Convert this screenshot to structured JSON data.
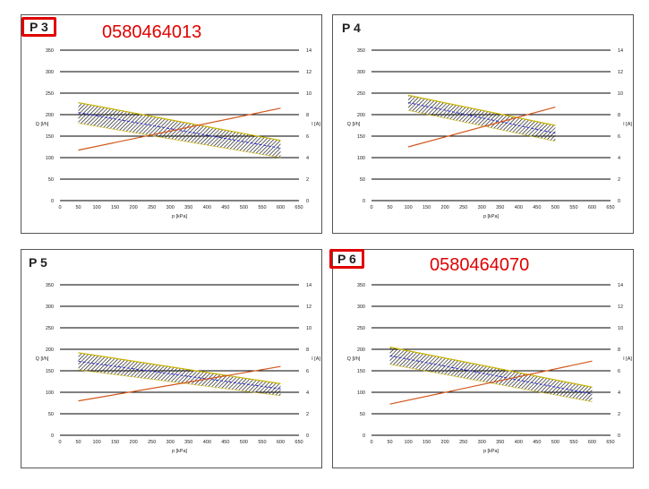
{
  "chart_data": [
    {
      "type": "line",
      "title": "P 3",
      "part_number": "0580464013",
      "highlighted": true,
      "xlabel": "p [kPa]",
      "ylabel": "Q [l/h]",
      "y2label": "I [A]",
      "xlim": [
        0,
        650
      ],
      "ylim": [
        0,
        350
      ],
      "y2lim": [
        0,
        14
      ],
      "x_ticks": [
        0,
        50,
        100,
        150,
        200,
        250,
        300,
        350,
        400,
        450,
        500,
        550,
        600,
        650
      ],
      "y_ticks": [
        0,
        50,
        100,
        150,
        200,
        250,
        300,
        350
      ],
      "y2_ticks": [
        0,
        2,
        4,
        6,
        8,
        10,
        12,
        14
      ],
      "grid": true,
      "series": [
        {
          "axis": "Q",
          "x": [
            50,
            600
          ],
          "y": [
            205,
            122
          ],
          "band_upper": [
            228,
            140
          ],
          "band_lower": [
            180,
            100
          ]
        },
        {
          "axis": "I",
          "x": [
            50,
            600
          ],
          "y": [
            4.7,
            8.6
          ]
        }
      ]
    },
    {
      "type": "line",
      "title": "P 4",
      "part_number": "",
      "highlighted": false,
      "xlabel": "p [kPa]",
      "ylabel": "Q [l/h]",
      "y2label": "I [A]",
      "xlim": [
        0,
        650
      ],
      "ylim": [
        0,
        350
      ],
      "y2lim": [
        0,
        14
      ],
      "x_ticks": [
        0,
        50,
        100,
        150,
        200,
        250,
        300,
        350,
        400,
        450,
        500,
        550,
        600,
        650
      ],
      "y_ticks": [
        0,
        50,
        100,
        150,
        200,
        250,
        300,
        350
      ],
      "y2_ticks": [
        0,
        2,
        4,
        6,
        8,
        10,
        12,
        14
      ],
      "grid": true,
      "series": [
        {
          "axis": "Q",
          "x": [
            100,
            500
          ],
          "y": [
            228,
            157
          ],
          "band_upper": [
            245,
            175
          ],
          "band_lower": [
            210,
            138
          ]
        },
        {
          "axis": "I",
          "x": [
            100,
            500
          ],
          "y": [
            5.0,
            8.7
          ]
        }
      ]
    },
    {
      "type": "line",
      "title": "P 5",
      "part_number": "",
      "highlighted": false,
      "xlabel": "p [kPa]",
      "ylabel": "Q [l/h]",
      "y2label": "I [A]",
      "xlim": [
        0,
        650
      ],
      "ylim": [
        0,
        350
      ],
      "y2lim": [
        0,
        14
      ],
      "x_ticks": [
        0,
        50,
        100,
        150,
        200,
        250,
        300,
        350,
        400,
        450,
        500,
        550,
        600,
        650
      ],
      "y_ticks": [
        0,
        50,
        100,
        150,
        200,
        250,
        300,
        350
      ],
      "y2_ticks": [
        0,
        2,
        4,
        6,
        8,
        10,
        12,
        14
      ],
      "grid": true,
      "series": [
        {
          "axis": "Q",
          "x": [
            50,
            600
          ],
          "y": [
            172,
            108
          ],
          "band_upper": [
            192,
            120
          ],
          "band_lower": [
            152,
            92
          ]
        },
        {
          "axis": "I",
          "x": [
            50,
            600
          ],
          "y": [
            3.2,
            6.4
          ]
        }
      ]
    },
    {
      "type": "line",
      "title": "P 6",
      "part_number": "0580464070",
      "highlighted": true,
      "xlabel": "p [kPa]",
      "ylabel": "Q [l/h]",
      "y2label": "I [A]",
      "xlim": [
        0,
        650
      ],
      "ylim": [
        0,
        350
      ],
      "y2lim": [
        0,
        14
      ],
      "x_ticks": [
        0,
        50,
        100,
        150,
        200,
        250,
        300,
        350,
        400,
        450,
        500,
        550,
        600,
        650
      ],
      "y_ticks": [
        0,
        50,
        100,
        150,
        200,
        250,
        300,
        350
      ],
      "y2_ticks": [
        0,
        2,
        4,
        6,
        8,
        10,
        12,
        14
      ],
      "grid": true,
      "series": [
        {
          "axis": "Q",
          "x": [
            50,
            600
          ],
          "y": [
            185,
            96
          ],
          "band_upper": [
            205,
            112
          ],
          "band_lower": [
            165,
            78
          ]
        },
        {
          "axis": "I",
          "x": [
            50,
            600
          ],
          "y": [
            2.9,
            6.9
          ]
        }
      ]
    }
  ],
  "colors": {
    "grid": "#000000",
    "band_hatch": "#111111",
    "band_edge": "#c8b400",
    "mean_line": "#2b2bd9",
    "current_line": "#d2561c",
    "highlight": "#e00000"
  }
}
